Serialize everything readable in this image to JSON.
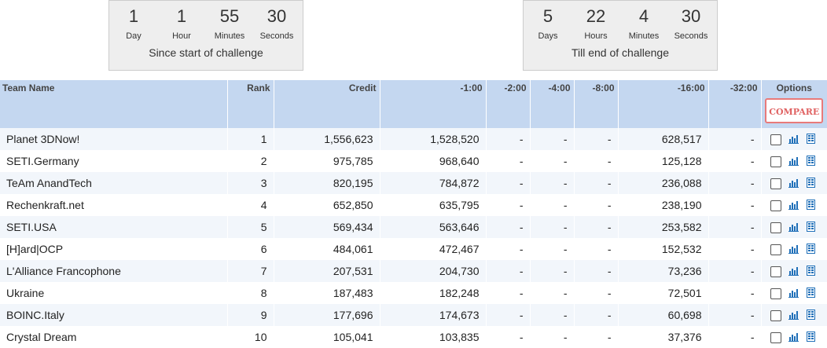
{
  "timers": {
    "since": {
      "units": [
        {
          "value": "1",
          "label": "Day"
        },
        {
          "value": "1",
          "label": "Hour"
        },
        {
          "value": "55",
          "label": "Minutes"
        },
        {
          "value": "30",
          "label": "Seconds"
        }
      ],
      "caption": "Since start of challenge"
    },
    "till": {
      "units": [
        {
          "value": "5",
          "label": "Days"
        },
        {
          "value": "22",
          "label": "Hours"
        },
        {
          "value": "4",
          "label": "Minutes"
        },
        {
          "value": "30",
          "label": "Seconds"
        }
      ],
      "caption": "Till end of challenge"
    }
  },
  "table": {
    "headers": {
      "team": "Team Name",
      "rank": "Rank",
      "credit": "Credit",
      "h1": "-1:00",
      "h2": "-2:00",
      "h4": "-4:00",
      "h8": "-8:00",
      "h16": "-16:00",
      "h32": "-32:00",
      "options": "Options"
    },
    "compare_label": "COMPARE",
    "rows": [
      {
        "team": "Planet 3DNow!",
        "rank": "1",
        "credit": "1,556,623",
        "h1": "1,528,520",
        "h2": "-",
        "h4": "-",
        "h8": "-",
        "h16": "628,517",
        "h32": "-"
      },
      {
        "team": "SETI.Germany",
        "rank": "2",
        "credit": "975,785",
        "h1": "968,640",
        "h2": "-",
        "h4": "-",
        "h8": "-",
        "h16": "125,128",
        "h32": "-"
      },
      {
        "team": "TeAm AnandTech",
        "rank": "3",
        "credit": "820,195",
        "h1": "784,872",
        "h2": "-",
        "h4": "-",
        "h8": "-",
        "h16": "236,088",
        "h32": "-"
      },
      {
        "team": "Rechenkraft.net",
        "rank": "4",
        "credit": "652,850",
        "h1": "635,795",
        "h2": "-",
        "h4": "-",
        "h8": "-",
        "h16": "238,190",
        "h32": "-"
      },
      {
        "team": "SETI.USA",
        "rank": "5",
        "credit": "569,434",
        "h1": "563,646",
        "h2": "-",
        "h4": "-",
        "h8": "-",
        "h16": "253,582",
        "h32": "-"
      },
      {
        "team": "[H]ard|OCP",
        "rank": "6",
        "credit": "484,061",
        "h1": "472,467",
        "h2": "-",
        "h4": "-",
        "h8": "-",
        "h16": "152,532",
        "h32": "-"
      },
      {
        "team": "L'Alliance Francophone",
        "rank": "7",
        "credit": "207,531",
        "h1": "204,730",
        "h2": "-",
        "h4": "-",
        "h8": "-",
        "h16": "73,236",
        "h32": "-"
      },
      {
        "team": "Ukraine",
        "rank": "8",
        "credit": "187,483",
        "h1": "182,248",
        "h2": "-",
        "h4": "-",
        "h8": "-",
        "h16": "72,501",
        "h32": "-"
      },
      {
        "team": "BOINC.Italy",
        "rank": "9",
        "credit": "177,696",
        "h1": "174,673",
        "h2": "-",
        "h4": "-",
        "h8": "-",
        "h16": "60,698",
        "h32": "-"
      },
      {
        "team": "Crystal Dream",
        "rank": "10",
        "credit": "105,041",
        "h1": "103,835",
        "h2": "-",
        "h4": "-",
        "h8": "-",
        "h16": "37,376",
        "h32": "-"
      }
    ]
  },
  "colors": {
    "header_bg": "#c4d7f0",
    "row_alt_bg": "#f2f6fb",
    "compare_border": "#e87a7a",
    "icon_blue": "#1f6fb8"
  },
  "icons": {
    "chart": "bar-chart-icon",
    "detail": "table-detail-icon"
  }
}
